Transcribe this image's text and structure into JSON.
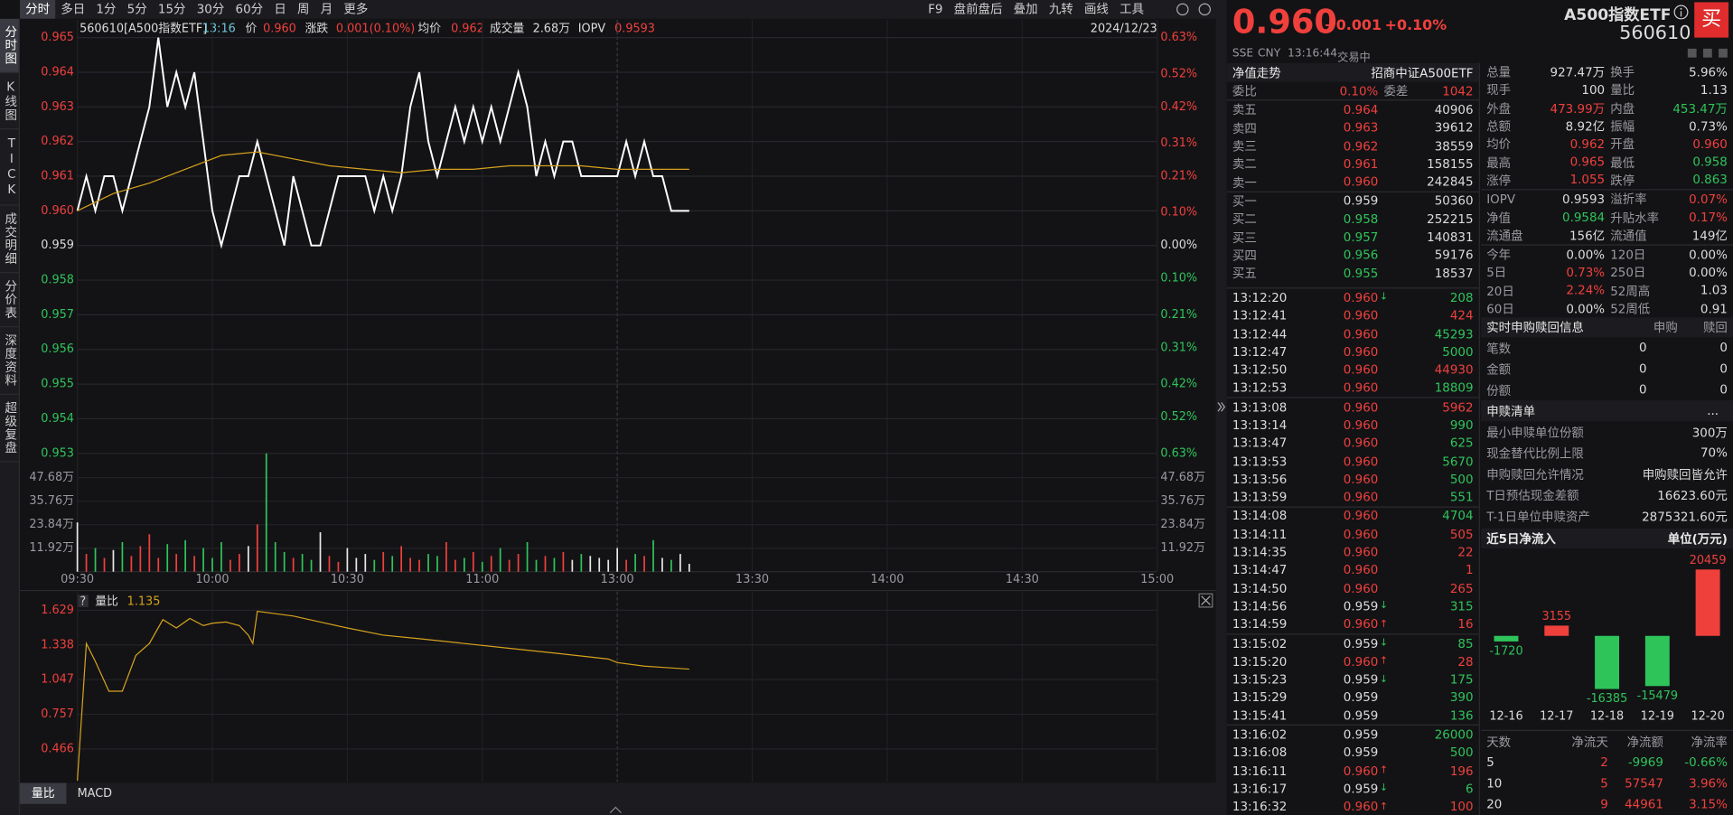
{
  "toolbar": {
    "tabs": [
      "分时",
      "多日",
      "1分",
      "5分",
      "15分",
      "30分",
      "60分",
      "日",
      "周",
      "月",
      "更多"
    ],
    "tools": [
      "F9",
      "盘前盘后",
      "叠加",
      "九转",
      "画线",
      "工具"
    ]
  },
  "sidebar": [
    "分时图",
    "K线图",
    "TICK",
    "成交明细",
    "分价表",
    "深度资料",
    "超级复盘"
  ],
  "chart_header": {
    "symbol": "560610[A500指数ETF]",
    "time": "13:16",
    "price_label": "价",
    "price": "0.960",
    "change_label": "涨跌",
    "change": "0.001(0.10%)",
    "avg_label": "均价",
    "avg": "0.962",
    "volume_label": "成交量",
    "volume": "2.68万",
    "iopv_label": "IOPV",
    "iopv": "0.9593",
    "date": "2024/12/23"
  },
  "price_chart": {
    "type": "line",
    "xlim": [
      "09:30",
      "15:00"
    ],
    "x_ticks": [
      "09:30",
      "10:00",
      "10:30",
      "11:00",
      "13:00",
      "13:30",
      "14:00",
      "14:30",
      "15:00"
    ],
    "ylim": [
      0.953,
      0.965
    ],
    "yticks": [
      {
        "value": 0.965,
        "label": "0.965"
      },
      {
        "value": 0.964,
        "label": "0.964"
      },
      {
        "value": 0.963,
        "label": "0.963"
      },
      {
        "value": 0.962,
        "label": "0.962"
      },
      {
        "value": 0.961,
        "label": "0.961"
      },
      {
        "value": 0.96,
        "label": "0.960"
      },
      {
        "value": 0.959,
        "label": "0.959"
      },
      {
        "value": 0.958,
        "label": "0.958"
      },
      {
        "value": 0.957,
        "label": "0.957"
      },
      {
        "value": 0.956,
        "label": "0.956"
      },
      {
        "value": 0.955,
        "label": "0.955"
      },
      {
        "value": 0.954,
        "label": "0.954"
      },
      {
        "value": 0.953,
        "label": "0.953"
      }
    ],
    "y2lim": [
      -0.63,
      0.63
    ],
    "y2ticks": [
      {
        "value": 0.63,
        "label": "0.63%"
      },
      {
        "value": 0.52,
        "label": "0.52%"
      },
      {
        "value": 0.42,
        "label": "0.42%"
      },
      {
        "value": 0.31,
        "label": "0.31%"
      },
      {
        "value": 0.21,
        "label": "0.21%"
      },
      {
        "value": 0.1,
        "label": "0.10%"
      },
      {
        "value": 0,
        "label": "0.00%"
      },
      {
        "value": -0.1,
        "label": "0.10%"
      },
      {
        "value": -0.21,
        "label": "0.21%"
      },
      {
        "value": -0.31,
        "label": "0.31%"
      },
      {
        "value": -0.42,
        "label": "0.42%"
      },
      {
        "value": -0.52,
        "label": "0.52%"
      },
      {
        "value": -0.63,
        "label": "0.63%"
      }
    ],
    "series": [
      {
        "color": "#ffffff",
        "x": [
          "09:30",
          "09:32",
          "09:34",
          "09:36",
          "09:38",
          "09:40",
          "09:42",
          "09:44",
          "09:46",
          "09:48",
          "09:50",
          "09:52",
          "09:54",
          "09:56",
          "09:58",
          "10:00",
          "10:02",
          "10:04",
          "10:06",
          "10:08",
          "10:10",
          "10:12",
          "10:14",
          "10:16",
          "10:18",
          "10:20",
          "10:22",
          "10:24",
          "10:26",
          "10:28",
          "10:30",
          "10:32",
          "10:34",
          "10:36",
          "10:38",
          "10:40",
          "10:42",
          "10:44",
          "10:46",
          "10:48",
          "10:50",
          "10:52",
          "10:54",
          "10:56",
          "10:58",
          "11:00",
          "11:02",
          "11:04",
          "11:06",
          "11:08",
          "11:10",
          "11:12",
          "11:14",
          "11:16",
          "11:18",
          "11:20",
          "11:22",
          "11:24",
          "11:26",
          "11:28",
          "13:00",
          "13:02",
          "13:04",
          "13:06",
          "13:08",
          "13:10",
          "13:12",
          "13:14",
          "13:16"
        ],
        "values": [
          0.96,
          0.961,
          0.96,
          0.961,
          0.961,
          0.96,
          0.961,
          0.962,
          0.963,
          0.965,
          0.963,
          0.964,
          0.963,
          0.964,
          0.962,
          0.96,
          0.959,
          0.96,
          0.961,
          0.961,
          0.962,
          0.961,
          0.96,
          0.959,
          0.961,
          0.96,
          0.959,
          0.959,
          0.96,
          0.961,
          0.961,
          0.961,
          0.961,
          0.96,
          0.961,
          0.96,
          0.961,
          0.963,
          0.964,
          0.962,
          0.961,
          0.962,
          0.963,
          0.962,
          0.963,
          0.962,
          0.963,
          0.962,
          0.963,
          0.964,
          0.963,
          0.961,
          0.962,
          0.961,
          0.962,
          0.962,
          0.961,
          0.961,
          0.961,
          0.961,
          0.961,
          0.962,
          0.961,
          0.962,
          0.961,
          0.961,
          0.96,
          0.96,
          0.96
        ]
      },
      {
        "color": "#d6a21c",
        "x": [
          "09:30",
          "09:38",
          "09:46",
          "09:54",
          "10:02",
          "10:10",
          "10:18",
          "10:26",
          "10:34",
          "10:42",
          "10:50",
          "10:58",
          "11:06",
          "11:14",
          "11:22",
          "13:00",
          "13:08",
          "13:16"
        ],
        "values": [
          0.96,
          0.9605,
          0.9608,
          0.9612,
          0.9616,
          0.9617,
          0.9615,
          0.9613,
          0.9612,
          0.9611,
          0.9612,
          0.9612,
          0.9613,
          0.9613,
          0.9613,
          0.9612,
          0.9612,
          0.9612
        ]
      }
    ]
  },
  "volume_chart": {
    "type": "bar",
    "ylim": [
      0,
      600000
    ],
    "yticks": [
      {
        "value": 476800,
        "label": "47.68万"
      },
      {
        "value": 357600,
        "label": "35.76万"
      },
      {
        "value": 238400,
        "label": "23.84万"
      },
      {
        "value": 119200,
        "label": "11.92万"
      }
    ],
    "values": [
      250000,
      90000,
      120000,
      70000,
      110000,
      150000,
      80000,
      130000,
      190000,
      70000,
      140000,
      90000,
      160000,
      80000,
      120000,
      70000,
      150000,
      60000,
      90000,
      130000,
      240000,
      600000,
      150000,
      100000,
      70000,
      90000,
      60000,
      200000,
      80000,
      50000,
      120000,
      70000,
      90000,
      60000,
      100000,
      80000,
      130000,
      70000,
      60000,
      90000,
      80000,
      150000,
      60000,
      70000,
      100000,
      50000,
      80000,
      120000,
      60000,
      90000,
      150000,
      60000,
      80000,
      70000,
      100000,
      60000,
      90000,
      80000,
      70000,
      60000,
      120000,
      60000,
      90000,
      80000,
      160000,
      70000,
      60000,
      90000,
      40000
    ],
    "up_color": "#f0403c",
    "down_color": "#2fc45a",
    "flat_color": "#e8e8e8"
  },
  "ratio_chart": {
    "type": "line",
    "help": "?",
    "label": "量比",
    "current": "1.135",
    "color": "#d6a21c",
    "ylim": [
      0.19,
      1.72
    ],
    "yticks": [
      1.629,
      1.338,
      1.047,
      0.757,
      0.466
    ],
    "x": [
      "09:30",
      "09:32",
      "09:34",
      "09:37",
      "09:40",
      "09:43",
      "09:46",
      "09:49",
      "09:52",
      "09:55",
      "09:58",
      "10:00",
      "10:03",
      "10:06",
      "10:08",
      "10:09",
      "10:10",
      "10:14",
      "10:18",
      "10:24",
      "10:30",
      "10:38",
      "10:46",
      "10:56",
      "11:06",
      "11:16",
      "11:28",
      "13:00",
      "13:06",
      "13:10",
      "13:16"
    ],
    "values": [
      0.2,
      1.35,
      1.2,
      0.95,
      0.95,
      1.25,
      1.35,
      1.55,
      1.48,
      1.56,
      1.5,
      1.52,
      1.53,
      1.5,
      1.42,
      1.35,
      1.62,
      1.6,
      1.58,
      1.53,
      1.48,
      1.42,
      1.39,
      1.35,
      1.31,
      1.27,
      1.22,
      1.19,
      1.16,
      1.15,
      1.135
    ]
  },
  "bottom_tabs": [
    "量比",
    "MACD"
  ],
  "quote": {
    "price": "0.960",
    "change": "+0.001",
    "percent": "+0.10%",
    "name": "A500指数ETF",
    "code": "560610",
    "buy": "买",
    "exchange": "SSE",
    "currency": "CNY",
    "time": "13:16:44",
    "status": "交易中"
  },
  "nav_header": {
    "title": "净值走势",
    "fund": "招商中证A500ETF"
  },
  "order_ratio": {
    "label": "委比",
    "value": "0.10%",
    "diff_label": "委差",
    "diff": 1042
  },
  "order_book": [
    {
      "label": "卖五",
      "price": "0.964",
      "volume": 40906,
      "color": "red"
    },
    {
      "label": "卖四",
      "price": "0.963",
      "volume": 39612,
      "color": "red"
    },
    {
      "label": "卖三",
      "price": "0.962",
      "volume": 38559,
      "color": "red"
    },
    {
      "label": "卖二",
      "price": "0.961",
      "volume": 158155,
      "color": "red"
    },
    {
      "label": "卖一",
      "price": "0.960",
      "volume": 242845,
      "color": "red"
    },
    {
      "label": "买一",
      "price": "0.959",
      "volume": 50360,
      "color": "white"
    },
    {
      "label": "买二",
      "price": "0.958",
      "volume": 252215,
      "color": "green"
    },
    {
      "label": "买三",
      "price": "0.957",
      "volume": 140831,
      "color": "green"
    },
    {
      "label": "买四",
      "price": "0.956",
      "volume": 59176,
      "color": "green"
    },
    {
      "label": "买五",
      "price": "0.955",
      "volume": 18537,
      "color": "green"
    }
  ],
  "ticks": [
    {
      "time": "13:12:20",
      "price": "0.960",
      "arrow": "↓",
      "volume": 208,
      "price_color": "red",
      "volume_color": "green"
    },
    {
      "time": "13:12:41",
      "price": "0.960",
      "volume": 424,
      "price_color": "red",
      "volume_color": "red"
    },
    {
      "time": "13:12:44",
      "price": "0.960",
      "volume": 45293,
      "price_color": "red",
      "volume_color": "green"
    },
    {
      "time": "13:12:47",
      "price": "0.960",
      "volume": 5000,
      "price_color": "red",
      "volume_color": "green"
    },
    {
      "time": "13:12:50",
      "price": "0.960",
      "volume": 44930,
      "price_color": "red",
      "volume_color": "red"
    },
    {
      "time": "13:12:53",
      "price": "0.960",
      "volume": 18809,
      "price_color": "red",
      "volume_color": "green"
    },
    {
      "time": "13:13:08",
      "price": "0.960",
      "volume": 5962,
      "price_color": "red",
      "volume_color": "red"
    },
    {
      "time": "13:13:14",
      "price": "0.960",
      "volume": 990,
      "price_color": "red",
      "volume_color": "green"
    },
    {
      "time": "13:13:47",
      "price": "0.960",
      "volume": 625,
      "price_color": "red",
      "volume_color": "green"
    },
    {
      "time": "13:13:53",
      "price": "0.960",
      "volume": 5670,
      "price_color": "red",
      "volume_color": "green"
    },
    {
      "time": "13:13:56",
      "price": "0.960",
      "volume": 500,
      "price_color": "red",
      "volume_color": "green"
    },
    {
      "time": "13:13:59",
      "price": "0.960",
      "volume": 551,
      "price_color": "red",
      "volume_color": "green"
    },
    {
      "time": "13:14:08",
      "price": "0.960",
      "volume": 4704,
      "price_color": "red",
      "volume_color": "green"
    },
    {
      "time": "13:14:11",
      "price": "0.960",
      "volume": 505,
      "price_color": "red",
      "volume_color": "red"
    },
    {
      "time": "13:14:35",
      "price": "0.960",
      "volume": 22,
      "price_color": "red",
      "volume_color": "red"
    },
    {
      "time": "13:14:47",
      "price": "0.960",
      "volume": 1,
      "price_color": "red",
      "volume_color": "red"
    },
    {
      "time": "13:14:50",
      "price": "0.960",
      "volume": 265,
      "price_color": "red",
      "volume_color": "red"
    },
    {
      "time": "13:14:56",
      "price": "0.959",
      "arrow": "↓",
      "volume": 315,
      "price_color": "white",
      "volume_color": "green"
    },
    {
      "time": "13:14:59",
      "price": "0.960",
      "arrow": "↑",
      "volume": 16,
      "price_color": "red",
      "volume_color": "red"
    },
    {
      "time": "13:15:02",
      "price": "0.959",
      "arrow": "↓",
      "volume": 85,
      "price_color": "white",
      "volume_color": "green"
    },
    {
      "time": "13:15:20",
      "price": "0.960",
      "arrow": "↑",
      "volume": 28,
      "price_color": "red",
      "volume_color": "red"
    },
    {
      "time": "13:15:23",
      "price": "0.959",
      "arrow": "↓",
      "volume": 175,
      "price_color": "white",
      "volume_color": "green"
    },
    {
      "time": "13:15:29",
      "price": "0.959",
      "volume": 390,
      "price_color": "white",
      "volume_color": "green"
    },
    {
      "time": "13:15:41",
      "price": "0.959",
      "volume": 136,
      "price_color": "white",
      "volume_color": "green"
    },
    {
      "time": "13:16:02",
      "price": "0.959",
      "volume": 26000,
      "price_color": "white",
      "volume_color": "green"
    },
    {
      "time": "13:16:08",
      "price": "0.959",
      "volume": 500,
      "price_color": "white",
      "volume_color": "green"
    },
    {
      "time": "13:16:11",
      "price": "0.960",
      "arrow": "↑",
      "volume": 196,
      "price_color": "red",
      "volume_color": "red"
    },
    {
      "time": "13:16:17",
      "price": "0.959",
      "arrow": "↓",
      "volume": 6,
      "price_color": "white",
      "volume_color": "green"
    },
    {
      "time": "13:16:32",
      "price": "0.960",
      "arrow": "↑",
      "volume": 100,
      "price_color": "red",
      "volume_color": "red"
    }
  ],
  "stats": [
    [
      [
        {
          "label": "总量",
          "value": "927.47万",
          "color": "white"
        },
        {
          "label": "换手",
          "value": "5.96%",
          "color": "white"
        }
      ],
      [
        {
          "label": "现手",
          "value": "100",
          "color": "white"
        },
        {
          "label": "量比",
          "value": "1.13",
          "color": "white"
        }
      ],
      [
        {
          "label": "外盘",
          "value": "473.99万",
          "color": "red"
        },
        {
          "label": "内盘",
          "value": "453.47万",
          "color": "green"
        }
      ],
      [
        {
          "label": "总额",
          "value": "8.92亿",
          "color": "white"
        },
        {
          "label": "振幅",
          "value": "0.73%",
          "color": "white"
        }
      ],
      [
        {
          "label": "均价",
          "value": "0.962",
          "color": "red"
        },
        {
          "label": "开盘",
          "value": "0.960",
          "color": "red"
        }
      ],
      [
        {
          "label": "最高",
          "value": "0.965",
          "color": "red"
        },
        {
          "label": "最低",
          "value": "0.958",
          "color": "green"
        }
      ],
      [
        {
          "label": "涨停",
          "value": "1.055",
          "color": "red"
        },
        {
          "label": "跌停",
          "value": "0.863",
          "color": "green"
        }
      ]
    ],
    [
      [
        {
          "label": "IOPV",
          "value": "0.9593",
          "color": "white"
        },
        {
          "label": "溢折率",
          "value": "0.07%",
          "color": "red"
        }
      ],
      [
        {
          "label": "净值",
          "value": "0.9584",
          "color": "green"
        },
        {
          "label": "升贴水率",
          "value": "0.17%",
          "color": "red"
        }
      ],
      [
        {
          "label": "流通盘",
          "value": "156亿",
          "color": "white"
        },
        {
          "label": "流通值",
          "value": "149亿",
          "color": "white"
        }
      ]
    ],
    [
      [
        {
          "label": "今年",
          "value": "0.00%",
          "color": "white"
        },
        {
          "label": "120日",
          "value": "0.00%",
          "color": "white"
        }
      ],
      [
        {
          "label": "5日",
          "value": "0.73%",
          "color": "red"
        },
        {
          "label": "250日",
          "value": "0.00%",
          "color": "white"
        }
      ],
      [
        {
          "label": "20日",
          "value": "2.24%",
          "color": "red"
        },
        {
          "label": "52周高",
          "value": "1.03",
          "color": "white"
        }
      ],
      [
        {
          "label": "60日",
          "value": "0.00%",
          "color": "white"
        },
        {
          "label": "52周低",
          "value": "0.91",
          "color": "white"
        }
      ]
    ]
  ],
  "subscription": {
    "title": "实时申购赎回信息",
    "columns": [
      "申购",
      "赎回"
    ],
    "rows": [
      {
        "label": "笔数",
        "values": [
          0,
          0
        ]
      },
      {
        "label": "金额",
        "values": [
          0,
          0
        ]
      },
      {
        "label": "份额",
        "values": [
          0,
          0
        ]
      }
    ]
  },
  "redemption_list": {
    "title": "申赎清单",
    "more": "...",
    "rows": [
      {
        "label": "最小申赎单位份额",
        "value": "300万"
      },
      {
        "label": "现金替代比例上限",
        "value": "70%"
      },
      {
        "label": "申购赎回允许情况",
        "value": "申购赎回皆允许"
      },
      {
        "label": "T日预估现金差额",
        "value": "16623.60元"
      },
      {
        "label": "T-1日单位申赎资产",
        "value": "2875321.60元"
      }
    ]
  },
  "net_inflow": {
    "type": "bar",
    "title": "近5日净流入",
    "unit": "单位(万元)",
    "categories": [
      "12-16",
      "12-17",
      "12-18",
      "12-19",
      "12-20"
    ],
    "values": [
      -1720,
      3155,
      -16385,
      -15479,
      20459
    ],
    "up_color": "#f0403c",
    "down_color": "#2fc45a",
    "table": {
      "header": [
        "天数",
        "净流天",
        "净流额",
        "净流率"
      ],
      "rows": [
        [
          5,
          2,
          -9969,
          "-0.66%"
        ],
        [
          10,
          5,
          57547,
          "3.96%"
        ],
        [
          20,
          9,
          44961,
          "3.15%"
        ]
      ]
    }
  }
}
